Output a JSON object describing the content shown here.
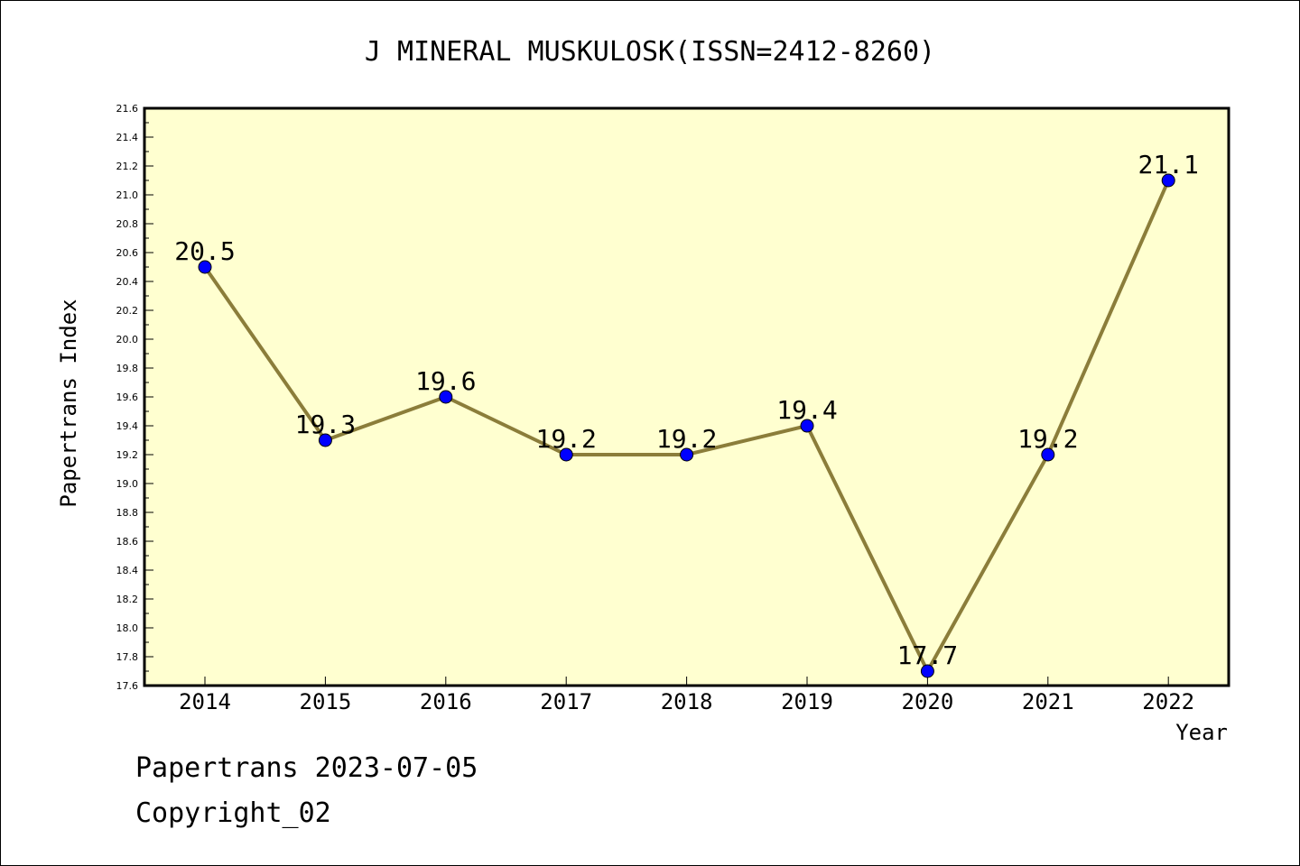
{
  "chart_data": {
    "type": "line",
    "title": "J MINERAL MUSKULOSK(ISSN=2412-8260)",
    "xlabel": "Year",
    "ylabel": "Papertrans Index",
    "x": [
      2014,
      2015,
      2016,
      2017,
      2018,
      2019,
      2020,
      2021,
      2022
    ],
    "values": [
      20.5,
      19.3,
      19.6,
      19.2,
      19.2,
      19.4,
      17.7,
      19.2,
      21.1
    ],
    "data_labels": [
      "20.5",
      "19.3",
      "19.6",
      "19.2",
      "19.2",
      "19.4",
      "17.7",
      "19.2",
      "21.1"
    ],
    "ylim": [
      17.6,
      21.6
    ],
    "y_ticks": [
      "17.6",
      "17.8",
      "18.0",
      "18.2",
      "18.4",
      "18.6",
      "18.8",
      "19.0",
      "19.2",
      "19.4",
      "19.6",
      "19.8",
      "20.0",
      "20.2",
      "20.4",
      "20.6",
      "20.8",
      "21.0",
      "21.2",
      "21.4",
      "21.6"
    ],
    "x_ticks": [
      "2014",
      "2015",
      "2016",
      "2017",
      "2018",
      "2019",
      "2020",
      "2021",
      "2022"
    ],
    "grid": false,
    "colors": {
      "plot_background": "#ffffd0",
      "line": "#8b7d3a",
      "marker": "#0000ff"
    }
  },
  "footer": {
    "line1": "Papertrans 2023-07-05",
    "line2": "Copyright_02"
  }
}
